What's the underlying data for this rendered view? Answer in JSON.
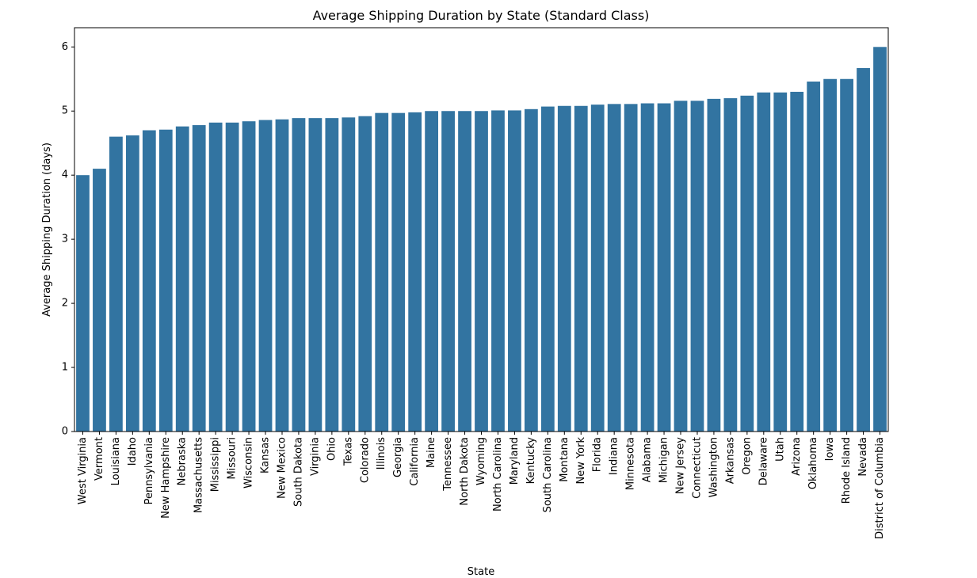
{
  "chart_data": {
    "type": "bar",
    "title": "Average Shipping Duration by State (Standard Class)",
    "xlabel": "State",
    "ylabel": "Average Shipping Duration (days)",
    "ylim": [
      0,
      6.3
    ],
    "yticks": [
      0,
      1,
      2,
      3,
      4,
      5,
      6
    ],
    "grid": false,
    "legend": "none",
    "bar_color": "#3274a1",
    "categories": [
      "West Virginia",
      "Vermont",
      "Louisiana",
      "Idaho",
      "Pennsylvania",
      "New Hampshire",
      "Nebraska",
      "Massachusetts",
      "Mississippi",
      "Missouri",
      "Wisconsin",
      "Kansas",
      "New Mexico",
      "South Dakota",
      "Virginia",
      "Ohio",
      "Texas",
      "Colorado",
      "Illinois",
      "Georgia",
      "California",
      "Maine",
      "Tennessee",
      "North Dakota",
      "Wyoming",
      "North Carolina",
      "Maryland",
      "Kentucky",
      "South Carolina",
      "Montana",
      "New York",
      "Florida",
      "Indiana",
      "Minnesota",
      "Alabama",
      "Michigan",
      "New Jersey",
      "Connecticut",
      "Washington",
      "Arkansas",
      "Oregon",
      "Delaware",
      "Utah",
      "Arizona",
      "Oklahoma",
      "Iowa",
      "Rhode Island",
      "Nevada",
      "District of Columbia"
    ],
    "values": [
      4.0,
      4.1,
      4.6,
      4.62,
      4.7,
      4.71,
      4.76,
      4.78,
      4.82,
      4.82,
      4.84,
      4.86,
      4.87,
      4.89,
      4.89,
      4.89,
      4.9,
      4.92,
      4.97,
      4.97,
      4.98,
      5.0,
      5.0,
      5.0,
      5.0,
      5.01,
      5.01,
      5.03,
      5.07,
      5.08,
      5.08,
      5.1,
      5.11,
      5.11,
      5.12,
      5.12,
      5.16,
      5.16,
      5.19,
      5.2,
      5.24,
      5.29,
      5.29,
      5.3,
      5.46,
      5.5,
      5.5,
      5.67,
      6.0
    ]
  }
}
